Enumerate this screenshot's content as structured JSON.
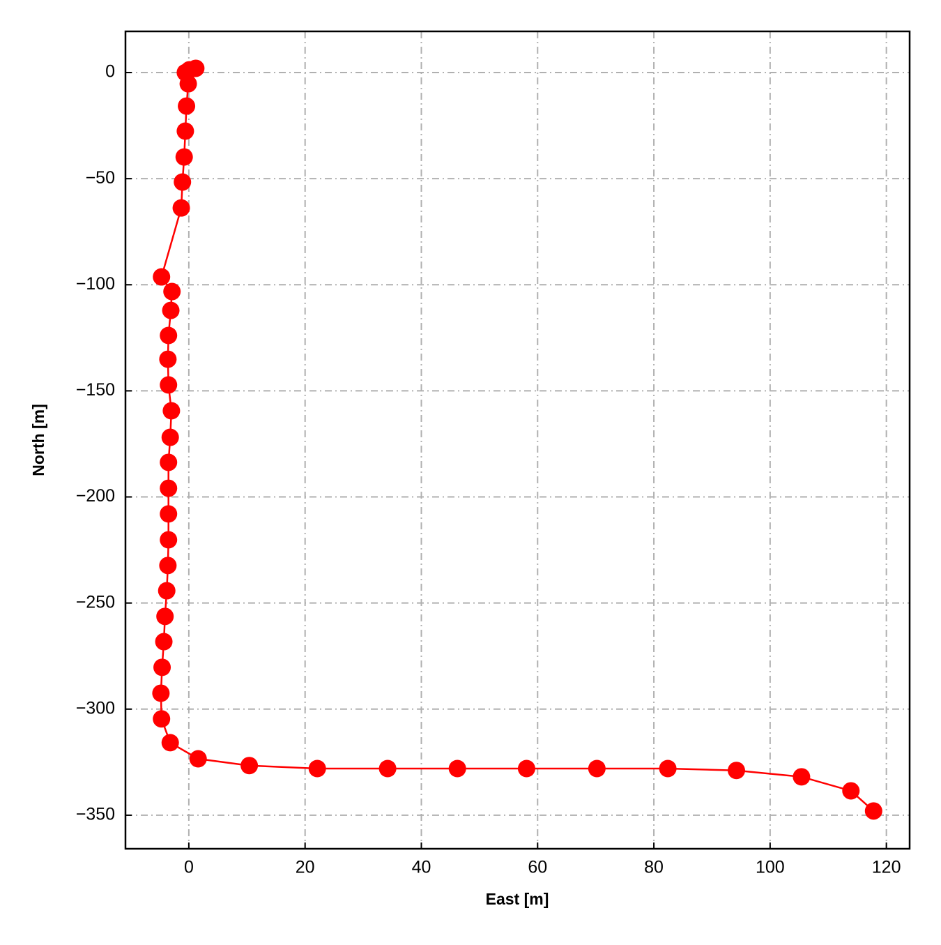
{
  "chart_data": {
    "type": "line",
    "x_label": "East [m]",
    "y_label": "North [m]",
    "color": "#ff0000",
    "grid": true,
    "markers": true,
    "x": [
      -0.6,
      0.1,
      1.2,
      -0.1,
      -0.4,
      -0.6,
      -0.8,
      -1.1,
      -1.3,
      -4.7,
      -2.9,
      -3.1,
      -3.5,
      -3.6,
      -3.5,
      -3.0,
      -3.2,
      -3.5,
      -3.5,
      -3.5,
      -3.5,
      -3.6,
      -3.8,
      -4.1,
      -4.3,
      -4.6,
      -4.8,
      -4.7,
      -3.2,
      1.6,
      10.4,
      22.1,
      34.2,
      46.2,
      58.1,
      70.2,
      82.4,
      94.2,
      105.4,
      113.9,
      117.8
    ],
    "values": [
      0,
      1.3,
      2,
      -5.3,
      -15.8,
      -27.6,
      -39.8,
      -51.6,
      -63.8,
      -96.3,
      -103.2,
      -112.1,
      -123.9,
      -135.1,
      -147.2,
      -159.4,
      -171.9,
      -183.7,
      -195.9,
      -208.0,
      -220.2,
      -232.3,
      -244.2,
      -256.3,
      -268.2,
      -280.3,
      -292.5,
      -304.6,
      -315.8,
      -323.4,
      -326.6,
      -328.0,
      -328.0,
      -328.0,
      -328.0,
      -328.0,
      -328.0,
      -328.9,
      -331.9,
      -338.5,
      -348.0
    ],
    "xlim": [
      -10.9,
      124
    ],
    "ylim": [
      -365.8,
      19.4
    ],
    "xticks": [
      0,
      20,
      40,
      60,
      80,
      100,
      120
    ],
    "yticks": [
      0,
      {
        "value": -50,
        "label": "−50"
      },
      {
        "value": -100,
        "label": "−100"
      },
      {
        "value": -150,
        "label": "−150"
      },
      {
        "value": -200,
        "label": "−200"
      },
      {
        "value": -250,
        "label": "−250"
      },
      {
        "value": -300,
        "label": "−300"
      },
      {
        "value": -350,
        "label": "−350"
      }
    ]
  }
}
